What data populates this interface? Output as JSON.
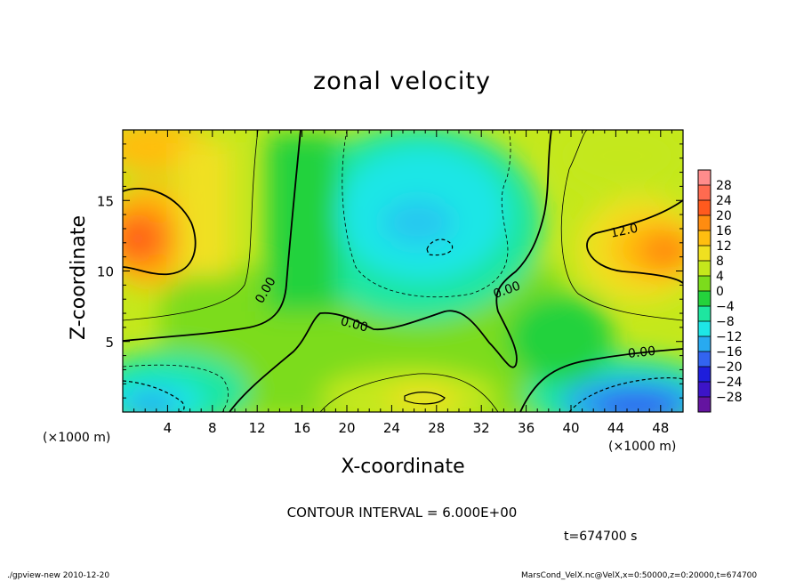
{
  "chart_data": {
    "type": "heatmap",
    "title": "zonal velocity",
    "xlabel": "X-coordinate",
    "ylabel": "Z-coordinate",
    "x_unit": "(×1000 m)",
    "z_unit": "(×1000 m)",
    "xlim": [
      0,
      50
    ],
    "ylim": [
      0,
      20
    ],
    "x_ticks": [
      4,
      8,
      12,
      16,
      20,
      24,
      28,
      32,
      36,
      40,
      44,
      48
    ],
    "y_ticks": [
      5,
      10,
      15
    ],
    "colorbar": {
      "labels": [
        28,
        24,
        20,
        16,
        12,
        8,
        4,
        0,
        -4,
        -8,
        -12,
        -16,
        -20,
        -24,
        -28
      ],
      "colors": [
        "#ff8c8c",
        "#ff6a50",
        "#ff5a1e",
        "#ff8c10",
        "#ffbe10",
        "#f0e020",
        "#c4e81c",
        "#7cdc1c",
        "#24d23c",
        "#1ee6a0",
        "#1ee6e6",
        "#28aaf0",
        "#3264f0",
        "#1e1edc",
        "#3c14c8",
        "#6414a0"
      ]
    },
    "contour_labels": [
      "0.00",
      "0.00",
      "0.00",
      "12.0",
      "0.00"
    ],
    "contour_interval_label": "CONTOUR INTERVAL = 6.000E+00",
    "time_label": "t=674700 s"
  },
  "footer": {
    "left": "./gpview-new   2010-12-20",
    "right": "MarsCond_VelX.nc@VelX,x=0:50000,z=0:20000,t=674700"
  }
}
